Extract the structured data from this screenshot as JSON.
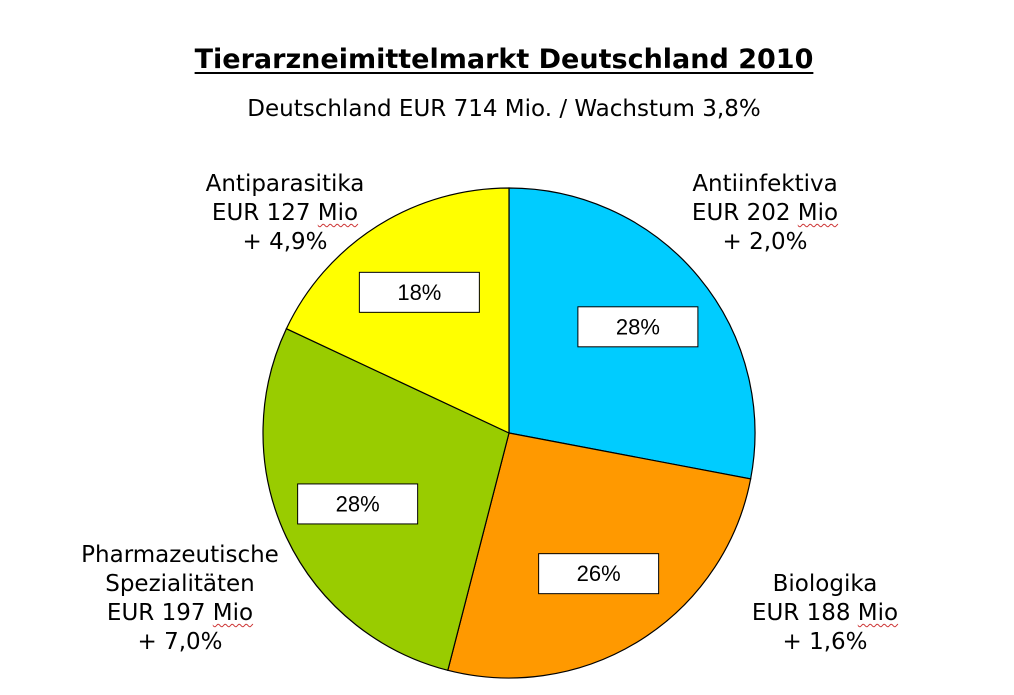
{
  "chart_data": {
    "type": "pie",
    "title": "Tierarzneimittelmarkt Deutschland 2010",
    "subtitle": "Deutschland EUR 714 Mio. / Wachstum 3,8%",
    "slices": [
      {
        "name": "Antiinfektiva",
        "percent": 28,
        "pct_label": "28%",
        "value_prefix": "EUR 202",
        "value_unit": "Mio",
        "growth": "+ 2,0%",
        "color": "#00CCFF"
      },
      {
        "name": "Biologika",
        "percent": 26,
        "pct_label": "26%",
        "value_prefix": "EUR 188",
        "value_unit": "Mio",
        "growth": "+ 1,6%",
        "color": "#FF9900"
      },
      {
        "name": "Pharmazeutische Spezialitäten",
        "name_lines": [
          "Pharmazeutische",
          "Spezialitäten"
        ],
        "percent": 28,
        "pct_label": "28%",
        "value_prefix": "EUR 197",
        "value_unit": "Mio",
        "growth": "+ 7,0%",
        "color": "#99CC00"
      },
      {
        "name": "Antiparasitika",
        "percent": 18,
        "pct_label": "18%",
        "value_prefix": "EUR 127",
        "value_unit": "Mio",
        "growth": "+ 4,9%",
        "color": "#FFFF00"
      }
    ]
  }
}
